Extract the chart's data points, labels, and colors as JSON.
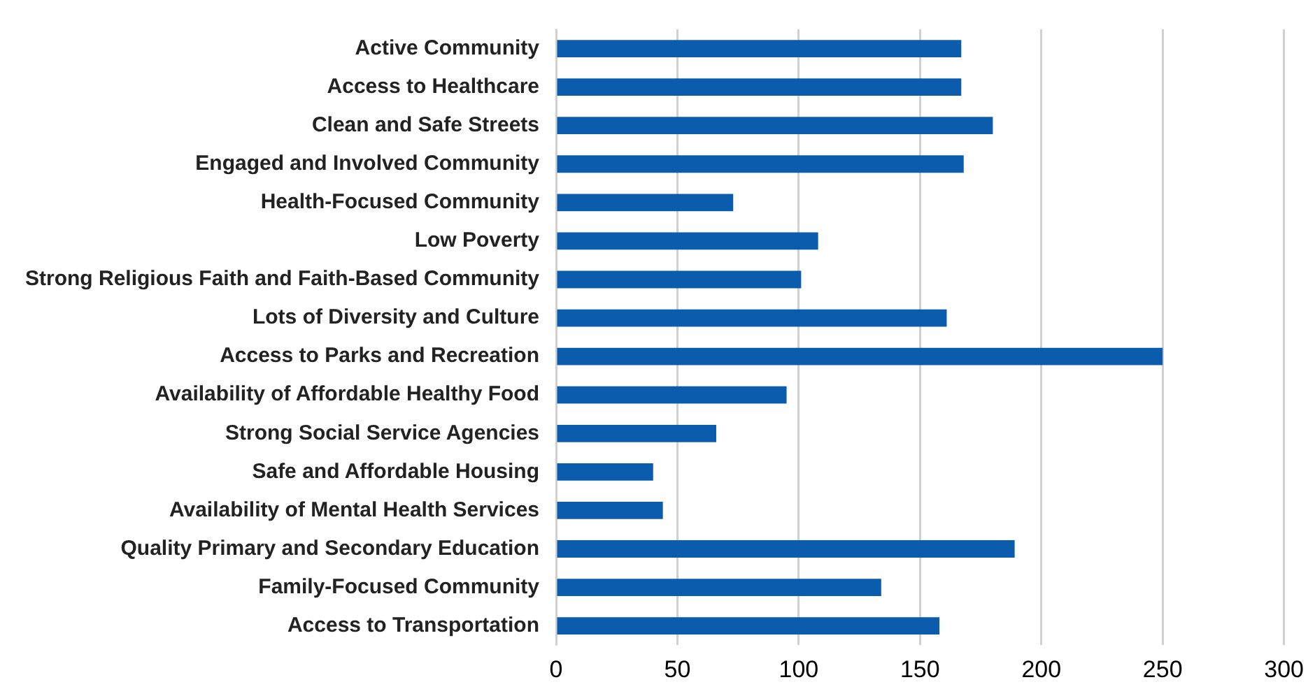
{
  "chart_data": {
    "type": "bar",
    "orientation": "horizontal",
    "categories": [
      "Active Community",
      "Access to Healthcare",
      "Clean and Safe Streets",
      "Engaged and Involved Community",
      "Health-Focused Community",
      "Low Poverty",
      "Strong Religious Faith and Faith-Based Community",
      "Lots of Diversity and Culture",
      "Access to Parks and Recreation",
      "Availability of Affordable Healthy Food",
      "Strong Social Service Agencies",
      "Safe and Affordable Housing",
      "Availability of Mental Health Services",
      "Quality Primary and Secondary Education",
      "Family-Focused Community",
      "Access to Transportation"
    ],
    "values": [
      167,
      167,
      180,
      168,
      73,
      108,
      101,
      161,
      250,
      95,
      66,
      40,
      44,
      189,
      134,
      158
    ],
    "color": "#0b5cad",
    "xlim": [
      0,
      300
    ],
    "xticks": [
      0,
      50,
      100,
      150,
      200,
      250,
      300
    ],
    "grid": "x"
  }
}
